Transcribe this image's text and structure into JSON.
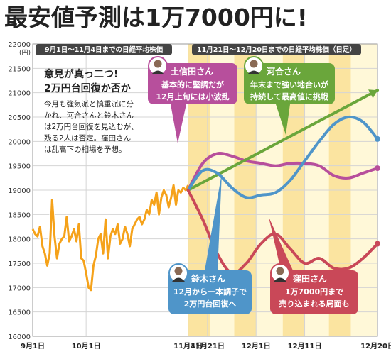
{
  "headline": "最安値予測は1万7000円に!",
  "chart_data": {
    "type": "line",
    "y_unit": "(円)",
    "ylim": [
      16000,
      22000
    ],
    "y_ticks": [
      16000,
      16500,
      17000,
      17500,
      18000,
      18500,
      19000,
      19500,
      20000,
      20500,
      21000,
      21500,
      22000
    ],
    "y_tick_labels": [
      "16000",
      "16500",
      "17000",
      "17500",
      "18000",
      "18500",
      "19000",
      "19500",
      "20000",
      "20500",
      "21000",
      "21500",
      "22000"
    ],
    "x_tick_labels": [
      "9月1日",
      "10月1日",
      "11月4日",
      "11月21日",
      "12月1日",
      "12月11日",
      "12月20日"
    ],
    "grid": true,
    "section_labels": {
      "past": "9月1日〜11月4日までの日経平均株価",
      "forecast": "11月21日〜12月20日までの日経平均株価（日足）"
    },
    "note": {
      "title_line1": "意見が真っ二つ!",
      "title_line2": "2万円台回復か否か",
      "body": [
        "今月も強気派と慎重派に分",
        "かれ、河合さんと鈴木さん",
        "は2万円台回復を見込むが、",
        "残る2人は否定。窪田さん",
        "は乱高下の相場を予想。"
      ]
    },
    "series": [
      {
        "name": "日経平均株価",
        "color": "#f5a21a",
        "x": [
          0,
          1,
          2,
          3,
          4,
          5,
          6,
          7,
          8,
          9,
          10,
          11,
          12,
          13,
          14,
          15,
          16,
          17,
          18,
          19,
          20,
          21,
          22,
          23,
          24,
          25,
          26,
          27,
          28,
          29,
          30,
          31,
          32,
          33,
          34,
          35,
          36,
          37,
          38,
          39,
          40,
          41,
          42,
          43,
          44,
          45,
          46,
          47,
          48,
          49,
          50,
          51,
          52,
          53,
          54,
          55,
          56,
          57,
          58,
          59,
          60,
          61,
          62,
          63,
          64
        ],
        "values": [
          18200,
          18100,
          18050,
          18250,
          17850,
          17700,
          17450,
          17700,
          18800,
          18050,
          17600,
          17900,
          18000,
          18050,
          18450,
          17950,
          18050,
          18200,
          17950,
          18300,
          17600,
          17550,
          17300,
          17000,
          16950,
          17450,
          17650,
          18000,
          18100,
          17700,
          18400,
          17600,
          18050,
          18200,
          18100,
          18300,
          17900,
          18000,
          18250,
          18100,
          17850,
          18200,
          18300,
          18400,
          18450,
          18300,
          18400,
          18600,
          18500,
          18800,
          18700,
          18950,
          18500,
          18850,
          19000,
          18900,
          18650,
          18850,
          19100,
          18700,
          19000,
          18950,
          19050,
          19000,
          19100
        ]
      }
    ],
    "forecasts": [
      {
        "name": "土信田さん",
        "comment": [
          "基本的に堅調だが",
          "12月上旬には小波乱"
        ],
        "color": "#b74f9c",
        "x": [
          64,
          70,
          76,
          82,
          88,
          94,
          100,
          106,
          112,
          118,
          124,
          130,
          136,
          142
        ],
        "values": [
          19000,
          19550,
          19750,
          19700,
          19600,
          19550,
          19500,
          19550,
          19550,
          19500,
          19300,
          19250,
          19350,
          19450
        ]
      },
      {
        "name": "河合さん",
        "comment": [
          "年末まで強い地合いが",
          "持続して最高値に挑戦"
        ],
        "color": "#6aa63b",
        "x": [
          64,
          142
        ],
        "values": [
          19000,
          21050
        ]
      },
      {
        "name": "鈴木さん",
        "comment": [
          "12月から一本調子で",
          "2万円台回復へ"
        ],
        "color": "#4f95c9",
        "x": [
          64,
          70,
          76,
          82,
          88,
          94,
          100,
          106,
          112,
          118,
          124,
          130,
          136,
          142
        ],
        "values": [
          19000,
          19400,
          19350,
          19050,
          18850,
          18900,
          18950,
          19200,
          19600,
          20000,
          20350,
          20500,
          20400,
          20050
        ]
      },
      {
        "name": "窪田さん",
        "comment": [
          "1万7000円まで",
          "売り込まれる局面も"
        ],
        "color": "#c94858",
        "x": [
          64,
          70,
          76,
          82,
          88,
          94,
          100,
          106,
          112,
          118,
          124,
          130,
          136,
          142
        ],
        "values": [
          19000,
          18400,
          17700,
          17300,
          17500,
          17900,
          18100,
          17800,
          17500,
          17600,
          17400,
          17400,
          17600,
          17900
        ]
      }
    ]
  }
}
